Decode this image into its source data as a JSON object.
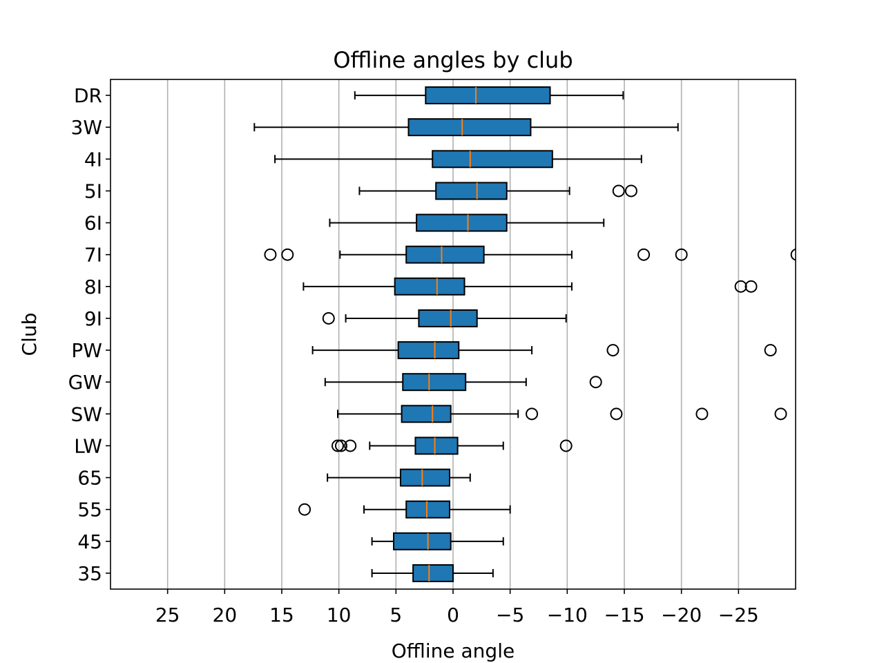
{
  "chart_data": {
    "type": "boxplot",
    "orientation": "horizontal",
    "title": "Offline angles by club",
    "x_label": "Offline angle",
    "y_label": "Club",
    "categories": [
      "DR",
      "3W",
      "4I",
      "5I",
      "6I",
      "7I",
      "8I",
      "9I",
      "PW",
      "GW",
      "SW",
      "LW",
      "65",
      "55",
      "45",
      "35"
    ],
    "boxes": [
      {
        "min": -14.9,
        "q1": -8.5,
        "median": -2.0,
        "q3": 2.4,
        "max": 8.6,
        "outliers": []
      },
      {
        "min": -19.7,
        "q1": -6.8,
        "median": -0.8,
        "q3": 3.9,
        "max": 17.4,
        "outliers": []
      },
      {
        "min": -16.5,
        "q1": -8.7,
        "median": -1.5,
        "q3": 1.8,
        "max": 15.6,
        "outliers": []
      },
      {
        "min": -10.2,
        "q1": -4.7,
        "median": -2.1,
        "q3": 1.5,
        "max": 8.2,
        "outliers": [
          -14.5,
          -15.6
        ]
      },
      {
        "min": -13.2,
        "q1": -4.7,
        "median": -1.3,
        "q3": 3.2,
        "max": 10.8,
        "outliers": []
      },
      {
        "min": -10.4,
        "q1": -2.7,
        "median": 1.0,
        "q3": 4.1,
        "max": 9.9,
        "outliers": [
          16.0,
          14.5,
          -16.7,
          -20.0,
          -30.1
        ]
      },
      {
        "min": -10.4,
        "q1": -1.0,
        "median": 1.4,
        "q3": 5.1,
        "max": 13.1,
        "outliers": [
          -25.2,
          -26.1
        ]
      },
      {
        "min": -9.9,
        "q1": -2.1,
        "median": 0.2,
        "q3": 3.0,
        "max": 9.4,
        "outliers": [
          10.9
        ]
      },
      {
        "min": -6.9,
        "q1": -0.5,
        "median": 1.6,
        "q3": 4.8,
        "max": 12.3,
        "outliers": [
          -14.0,
          -27.8
        ]
      },
      {
        "min": -6.4,
        "q1": -1.1,
        "median": 2.1,
        "q3": 4.4,
        "max": 11.2,
        "outliers": [
          -12.5
        ]
      },
      {
        "min": -5.7,
        "q1": 0.2,
        "median": 1.8,
        "q3": 4.5,
        "max": 10.1,
        "outliers": [
          -6.9,
          -14.3,
          -21.8,
          -28.7
        ]
      },
      {
        "min": -4.4,
        "q1": -0.4,
        "median": 1.6,
        "q3": 3.3,
        "max": 7.3,
        "outliers": [
          10.1,
          9.8,
          9.0,
          -9.9
        ]
      },
      {
        "min": -1.5,
        "q1": 0.3,
        "median": 2.7,
        "q3": 4.6,
        "max": 11.0,
        "outliers": []
      },
      {
        "min": -5.0,
        "q1": 0.3,
        "median": 2.3,
        "q3": 4.1,
        "max": 7.8,
        "outliers": [
          13.0
        ]
      },
      {
        "min": -4.4,
        "q1": 0.2,
        "median": 2.2,
        "q3": 5.2,
        "max": 7.1,
        "outliers": []
      },
      {
        "min": -3.5,
        "q1": 0.0,
        "median": 2.1,
        "q3": 3.5,
        "max": 7.1,
        "outliers": []
      }
    ],
    "box_color": "#1f77b4",
    "median_color": "#ff7f0e",
    "xlim": [
      30,
      -30
    ],
    "xticks": [
      25,
      20,
      15,
      10,
      5,
      0,
      {
        "value": -5,
        "label": "−5"
      },
      {
        "value": -10,
        "label": "−10"
      },
      {
        "value": -15,
        "label": "−15"
      },
      {
        "value": -20,
        "label": "−20"
      },
      {
        "value": -25,
        "label": "−25"
      }
    ],
    "grid": "x"
  }
}
